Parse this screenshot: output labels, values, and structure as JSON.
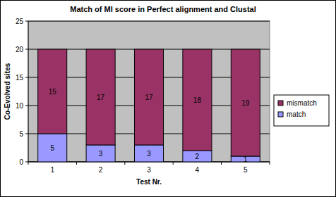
{
  "chart_data": {
    "type": "bar",
    "title": "Match of MI score in Perfect alignment and Clustal",
    "x_label": "Test Nr.",
    "y_label": "Co-Evolved sites",
    "categories": [
      "1",
      "2",
      "3",
      "4",
      "5"
    ],
    "series": [
      {
        "name": "match",
        "color": "#9999ff",
        "values": [
          5,
          3,
          3,
          2,
          1
        ]
      },
      {
        "name": "mismatch",
        "color": "#993366",
        "values": [
          15,
          17,
          17,
          18,
          19
        ]
      }
    ],
    "ylim": [
      0,
      25
    ],
    "yticks": [
      0,
      5,
      10,
      15,
      20,
      25
    ],
    "stacked": true,
    "grid": true,
    "legend": "right",
    "data_labels": true
  }
}
